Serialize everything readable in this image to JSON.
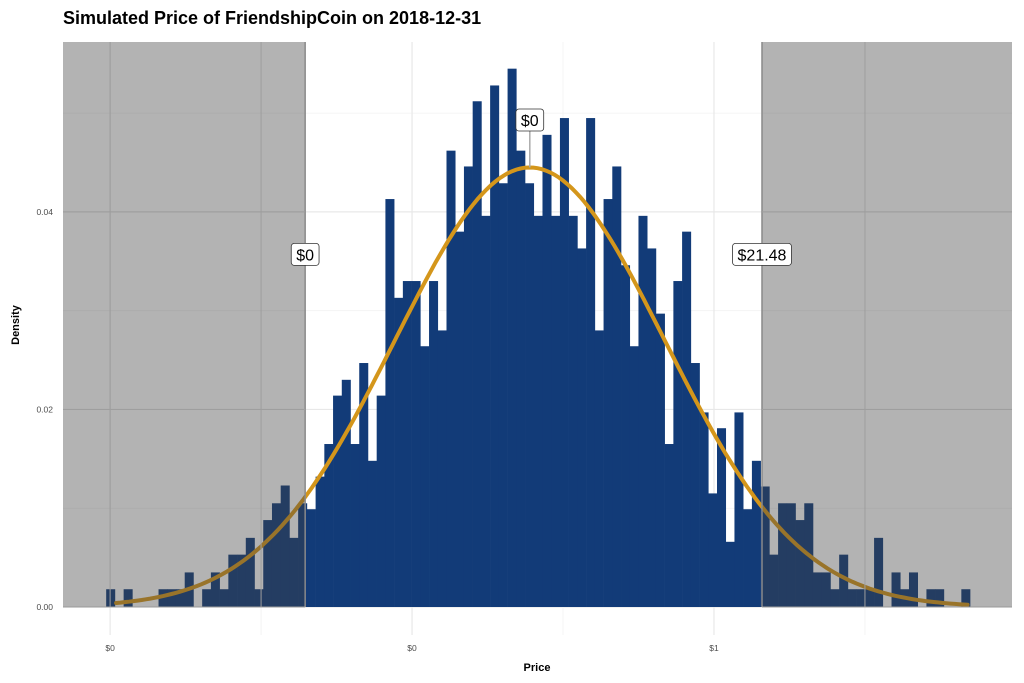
{
  "chart_data": {
    "type": "bar",
    "subtype": "histogram-with-density-curve",
    "title": "Simulated Price of FriendshipCoin on 2018-12-31",
    "xlabel": "Price",
    "ylabel": "Density",
    "x_scale": "log10",
    "xlim": [
      -2.156,
      0.987
    ],
    "ylim": [
      0,
      0.0572
    ],
    "grid": true,
    "x_ticks": [
      {
        "value": -2,
        "label": "$0"
      },
      {
        "value": -1,
        "label": "$0"
      },
      {
        "value": 0,
        "label": "$1"
      }
    ],
    "x_minor_ticks": [
      -1.5,
      -0.5,
      0.5
    ],
    "y_ticks": [
      {
        "value": 0,
        "label": "0.00"
      },
      {
        "value": 0.02,
        "label": "0.02"
      },
      {
        "value": 0.04,
        "label": "0.04"
      }
    ],
    "y_minor_ticks": [
      0.01,
      0.03,
      0.05
    ],
    "bins": {
      "start": -2.013,
      "width": 0.0289,
      "density": [
        0.0018,
        0,
        0.0018,
        0,
        0,
        0,
        0.0018,
        0.0018,
        0.0018,
        0.0035,
        0,
        0.0018,
        0.0035,
        0.0018,
        0.0053,
        0.0053,
        0.007,
        0.0018,
        0.0088,
        0.0105,
        0.0123,
        0.007,
        0.0105,
        0.0099,
        0.0132,
        0.0165,
        0.0214,
        0.023,
        0.0165,
        0.0247,
        0.0148,
        0.0214,
        0.0413,
        0.0313,
        0.033,
        0.033,
        0.0264,
        0.033,
        0.028,
        0.0462,
        0.038,
        0.0446,
        0.0512,
        0.0396,
        0.0528,
        0.0429,
        0.0545,
        0.0462,
        0.0429,
        0.0396,
        0.0478,
        0.0396,
        0.0495,
        0.0396,
        0.0363,
        0.0495,
        0.028,
        0.0413,
        0.0446,
        0.0346,
        0.0264,
        0.0396,
        0.0363,
        0.0297,
        0.0165,
        0.033,
        0.038,
        0.0247,
        0.0197,
        0.0115,
        0.0181,
        0.0066,
        0.0197,
        0.0099,
        0.0148,
        0.0122,
        0.0053,
        0.0105,
        0.0105,
        0.0088,
        0.0105,
        0.0035,
        0.0035,
        0.0018,
        0.0053,
        0.0018,
        0.0018,
        0.0018,
        0.007,
        0,
        0.0035,
        0.0018,
        0.0035,
        0,
        0.0018,
        0.0018,
        0,
        0,
        0.0018
      ]
    },
    "density_curve": {
      "type": "normal",
      "mean": -0.61,
      "sd": 0.447,
      "peak": 0.0445,
      "from": -1.98,
      "to": 0.84
    },
    "shaded_regions": [
      {
        "from": -2.156,
        "to": -1.354,
        "label": "$0"
      },
      {
        "from": 0.159,
        "to": 0.987,
        "label": "$21.48"
      }
    ],
    "median_marker": {
      "x": -0.61,
      "label": "$0"
    },
    "label_y": 0.0357,
    "median_label_y": 0.0493,
    "colors": {
      "bar": "#123b78",
      "curve": "#d4961b",
      "shade": "rgba(65,65,65,0.4)",
      "grid": "#e8e8e8",
      "shade_grid": "#9e9e9e"
    }
  }
}
